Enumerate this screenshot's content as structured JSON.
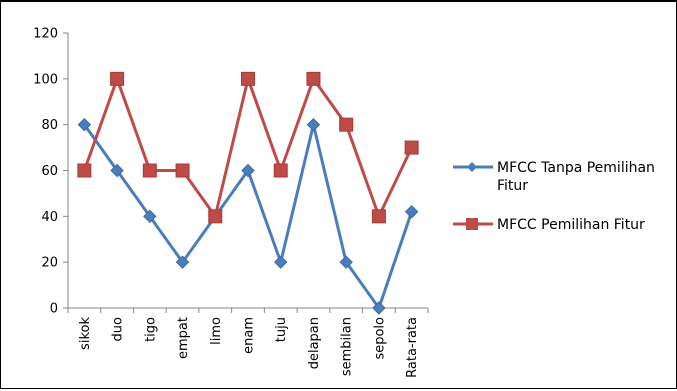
{
  "chart_data": {
    "type": "line",
    "title": "",
    "xlabel": "",
    "ylabel": "",
    "categories": [
      "sikok",
      "duo",
      "tigo",
      "empat",
      "limo",
      "enam",
      "tuju",
      "delapan",
      "sembilan",
      "sepolo",
      "Rata-rata"
    ],
    "ylim": [
      0,
      120
    ],
    "yticks": [
      0,
      20,
      40,
      60,
      80,
      100,
      120
    ],
    "grid": false,
    "legend_position": "right",
    "series": [
      {
        "name": "MFCC Tanpa Pemilihan Fitur",
        "color": "#4a7ebb",
        "marker": "diamond",
        "values": [
          80,
          60,
          40,
          20,
          40,
          60,
          20,
          80,
          20,
          0,
          42
        ]
      },
      {
        "name": "MFCC Pemilihan Fitur",
        "color": "#be4b48",
        "marker": "square",
        "values": [
          60,
          100,
          60,
          60,
          40,
          100,
          60,
          100,
          80,
          40,
          70
        ]
      }
    ]
  }
}
